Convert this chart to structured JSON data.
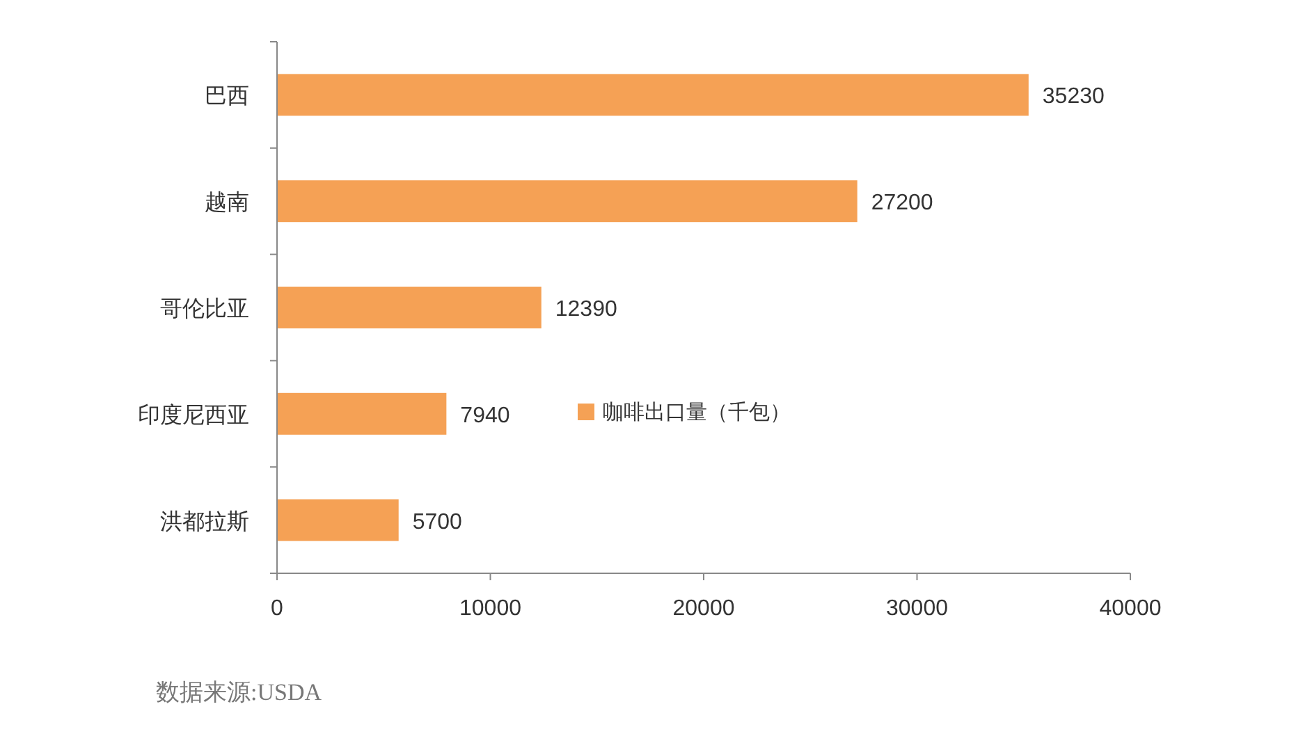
{
  "chart_data": {
    "type": "bar",
    "orientation": "horizontal",
    "categories": [
      "巴西",
      "越南",
      "哥伦比亚",
      "印度尼西亚",
      "洪都拉斯"
    ],
    "series": [
      {
        "name": "咖啡出口量（千包）",
        "color": "#f5a155",
        "values": [
          35230,
          27200,
          12390,
          7940,
          5700
        ]
      }
    ],
    "xlim": [
      0,
      40000
    ],
    "xticks": [
      0,
      10000,
      20000,
      30000,
      40000
    ],
    "data_labels": true,
    "grid": false,
    "legend": "right",
    "annotations": [
      "数据来源:USDA"
    ]
  }
}
